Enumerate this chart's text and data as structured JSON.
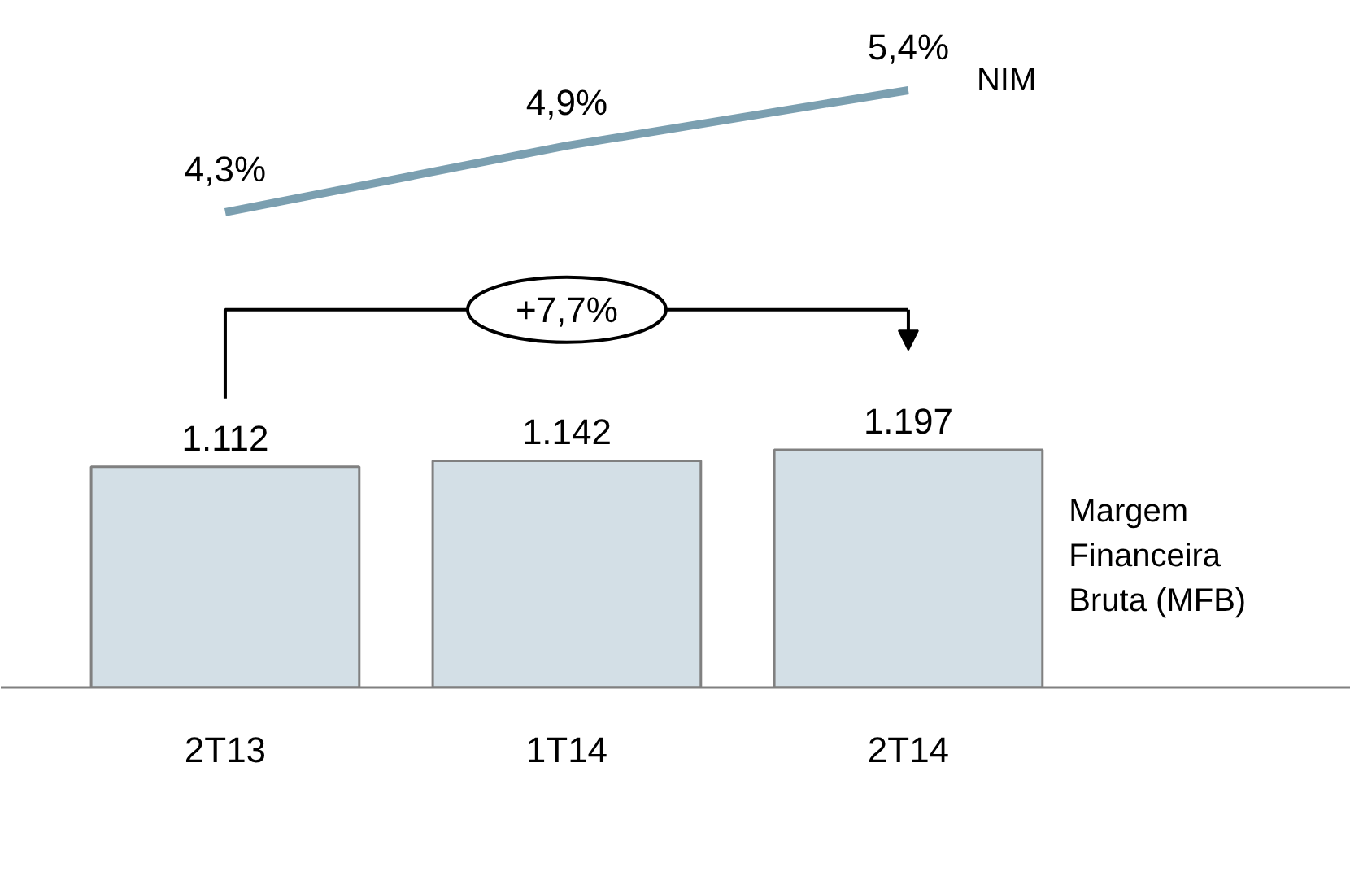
{
  "chart_data": [
    {
      "type": "line",
      "categories": [
        null,
        null,
        null
      ],
      "tick_labels": false,
      "grid": false,
      "legend": false,
      "series": [
        {
          "name": "NIM",
          "color": "#7b9fb0",
          "values": [
            4.3,
            4.9,
            5.4
          ],
          "value_labels": [
            "4,3%",
            "4,9%",
            "5,4%"
          ]
        }
      ]
    },
    {
      "type": "bar",
      "categories": [
        "2T13",
        "1T14",
        "2T14"
      ],
      "tick_labels": "x",
      "grid": false,
      "legend": false,
      "series": [
        {
          "name": "Margem\nFinanceira\nBruta (MFB)",
          "color": "#d3dfe6",
          "values": [
            1112,
            1142,
            1197
          ],
          "value_labels": [
            "1.112",
            "1.142",
            "1.197"
          ]
        }
      ],
      "annotations": [
        "+7,7%"
      ]
    }
  ]
}
